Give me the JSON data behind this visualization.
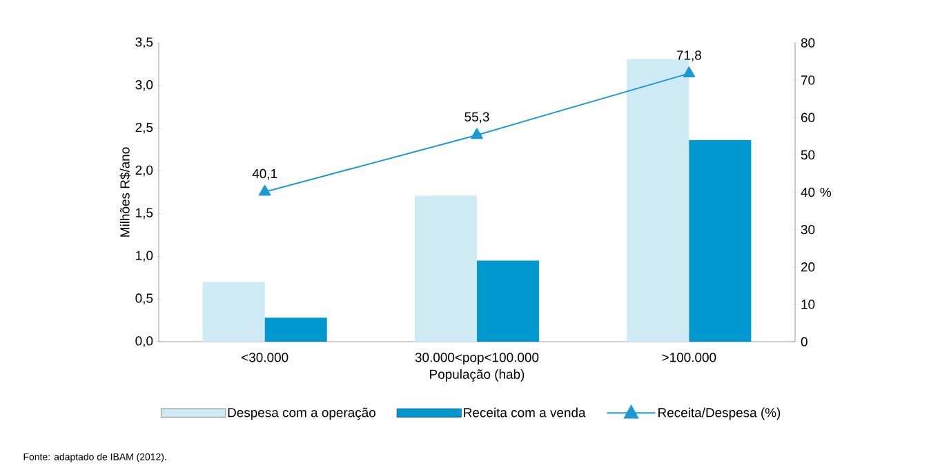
{
  "chart_data": {
    "type": "bar",
    "xlabel": "População (hab)",
    "ylabel": "Milhões R$/ano",
    "y2label": "%",
    "categories": [
      "<30.000",
      "30.000<pop<100.000",
      ">100.000"
    ],
    "series": [
      {
        "name": "Despesa com a operação",
        "color": "#cdeaf5",
        "values": [
          0.7,
          1.71,
          3.31
        ]
      },
      {
        "name": "Receita com a venda",
        "color": "#0099cf",
        "values": [
          0.28,
          0.95,
          2.36
        ]
      },
      {
        "name": "Receita/Despesa (%)",
        "type": "line",
        "axis": "y2",
        "color": "#1a9ad3",
        "marker": "triangle",
        "values": [
          40.1,
          55.3,
          71.8
        ],
        "value_labels": [
          "40,1",
          "55,3",
          "71,8"
        ]
      }
    ],
    "ylim": [
      0,
      3.5
    ],
    "yticks": [
      {
        "value": 0,
        "label": "0,0"
      },
      {
        "value": 0.5,
        "label": "0,5"
      },
      {
        "value": 1,
        "label": "1,0"
      },
      {
        "value": 1.5,
        "label": "1,5"
      },
      {
        "value": 2,
        "label": "2,0"
      },
      {
        "value": 2.5,
        "label": "2,5"
      },
      {
        "value": 3,
        "label": "3,0"
      },
      {
        "value": 3.5,
        "label": "3,5"
      }
    ],
    "y2lim": [
      0,
      80
    ],
    "y2ticks": [
      0,
      10,
      20,
      30,
      40,
      50,
      60,
      70,
      80
    ],
    "legend": "bottom",
    "annotations": [
      "Fonte: adaptado de IBAM (2012)."
    ]
  }
}
